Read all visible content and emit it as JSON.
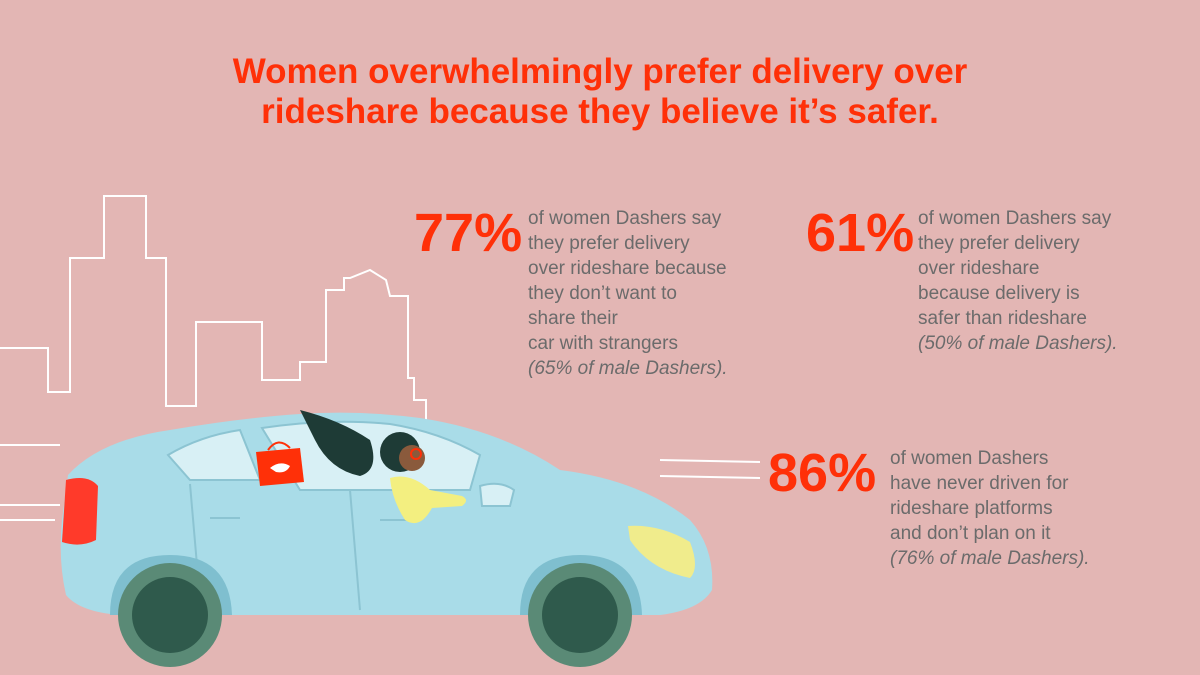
{
  "title": {
    "line1": "Women overwhelmingly prefer delivery over",
    "line2": "rideshare because they believe it’s safer."
  },
  "stats": [
    {
      "percent": "77%",
      "lines": [
        "of women Dashers say",
        "they prefer delivery",
        "over rideshare because",
        "they don’t want to",
        "share their",
        "car with strangers"
      ],
      "note": "(65% of male Dashers)."
    },
    {
      "percent": "61%",
      "lines": [
        "of women Dashers say",
        "they prefer delivery",
        "over rideshare",
        "because delivery is",
        "safer than rideshare"
      ],
      "note": "(50% of male Dashers)."
    },
    {
      "percent": "86%",
      "lines": [
        "of women Dashers",
        "have never driven for",
        "rideshare platforms",
        "and don’t plan on it"
      ],
      "note": "(76% of male Dashers)."
    }
  ],
  "colors": {
    "background": "#e3b6b4",
    "accent": "#ff3008",
    "car": "#a9dce8",
    "text": "#6b6b6b"
  },
  "illustration": {
    "icon": "car-with-driver-illustration"
  }
}
